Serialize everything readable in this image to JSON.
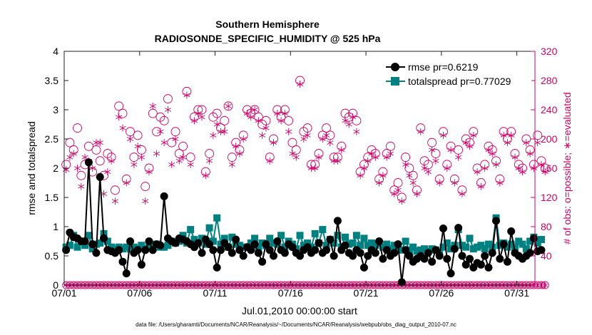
{
  "chart_data": {
    "type": "line",
    "title": "Southern Hemisphere",
    "subtitle": "RADIOSONDE_SPECIFIC_HUMIDITY @ 525 hPa",
    "xlabel": "Jul.01,2010 00:00:00 start",
    "ylabel_left": "rmse and totalspread",
    "ylabel_right": "# of obs: o=possible; ∗=evaluated",
    "footer": "data file: /Users/gharamti/Documents/NCAR/Reanalysis/~/Documents/NCAR/Reanalysis/webpub/obs_diag_output_2010-07.nc",
    "x_ticks": [
      {
        "day": 1,
        "label": "07/01"
      },
      {
        "day": 6,
        "label": "07/06"
      },
      {
        "day": 11,
        "label": "07/11"
      },
      {
        "day": 16,
        "label": "07/16"
      },
      {
        "day": 21,
        "label": "07/21"
      },
      {
        "day": 26,
        "label": "07/26"
      },
      {
        "day": 31,
        "label": "07/31"
      }
    ],
    "xlim": [
      1,
      32.2
    ],
    "y_left": {
      "lim": [
        0,
        4
      ],
      "ticks": [
        "0",
        "0.5",
        "1",
        "1.5",
        "2",
        "2.5",
        "3",
        "3.5",
        "4"
      ]
    },
    "y_right": {
      "lim": [
        0,
        320
      ],
      "ticks": [
        "0",
        "40",
        "80",
        "120",
        "160",
        "200",
        "240",
        "280",
        "320"
      ]
    },
    "colors": {
      "rmse": "#000000",
      "spread": "#008080",
      "obs": "#cc0066"
    },
    "start_day": 1.125,
    "step_days": 0.25,
    "series": [
      {
        "name": "rmse",
        "legend": "rmse pr=0.6219",
        "values": [
          0.6,
          0.9,
          0.82,
          0.8,
          0.75,
          0.75,
          2.1,
          0.7,
          0.55,
          1.85,
          0.8,
          0.6,
          0.58,
          0.55,
          0.6,
          0.4,
          0.2,
          0.75,
          0.55,
          0.6,
          0.35,
          0.6,
          0.75,
          0.6,
          0.7,
          0.68,
          1.52,
          0.8,
          0.75,
          0.72,
          0.8,
          0.78,
          0.75,
          0.7,
          0.65,
          0.72,
          0.55,
          0.78,
          0.7,
          0.6,
          0.3,
          0.6,
          0.72,
          0.65,
          0.55,
          0.78,
          0.6,
          0.5,
          0.65,
          0.6,
          0.7,
          0.55,
          0.4,
          0.7,
          0.6,
          0.5,
          0.75,
          0.6,
          0.55,
          0.7,
          0.65,
          0.55,
          0.5,
          0.6,
          0.65,
          0.55,
          0.6,
          0.72,
          0.55,
          0.6,
          0.78,
          0.5,
          1.1,
          0.6,
          0.68,
          0.55,
          0.5,
          0.6,
          0.55,
          0.3,
          0.5,
          0.6,
          0.55,
          0.75,
          0.45,
          0.6,
          0.5,
          0.55,
          0.7,
          0.05,
          0.6,
          0.5,
          0.4,
          0.45,
          0.5,
          0.45,
          0.55,
          0.4,
          0.6,
          0.5,
          0.97,
          0.45,
          0.2,
          0.62,
          0.98,
          0.5,
          0.35,
          0.45,
          0.3,
          0.38,
          0.35,
          0.5,
          0.3,
          0.55,
          1.1,
          0.45,
          0.7,
          0.4,
          0.92,
          0.55,
          0.5,
          0.45,
          0.5,
          0.55,
          0.8,
          0.58,
          0.6
        ]
      },
      {
        "name": "totalspread",
        "legend": "totalspread pr=0.77029",
        "values": [
          0.65,
          0.68,
          0.85,
          0.65,
          0.75,
          0.68,
          0.85,
          0.62,
          0.7,
          0.72,
          0.88,
          0.75,
          0.65,
          0.62,
          0.65,
          0.62,
          0.65,
          0.62,
          0.65,
          0.62,
          0.68,
          0.62,
          0.65,
          0.68,
          0.7,
          0.65,
          0.65,
          0.68,
          0.75,
          0.72,
          0.75,
          0.85,
          0.72,
          0.95,
          0.78,
          0.72,
          0.8,
          0.7,
          0.98,
          0.75,
          1.15,
          0.7,
          0.8,
          0.65,
          0.82,
          0.7,
          0.68,
          0.65,
          0.65,
          0.72,
          0.8,
          0.65,
          0.72,
          0.68,
          0.8,
          0.72,
          0.7,
          0.85,
          0.65,
          0.75,
          0.7,
          0.62,
          0.85,
          0.68,
          0.72,
          0.65,
          0.88,
          0.72,
          0.95,
          0.68,
          0.78,
          0.72,
          0.85,
          0.65,
          0.82,
          0.7,
          0.72,
          0.85,
          0.68,
          0.8,
          0.68,
          0.72,
          0.68,
          0.72,
          0.65,
          0.7,
          0.62,
          0.68,
          0.62,
          0.6,
          0.75,
          0.6,
          0.65,
          0.58,
          0.6,
          0.62,
          0.58,
          0.62,
          0.6,
          0.55,
          0.65,
          0.72,
          0.62,
          0.68,
          0.95,
          0.68,
          0.65,
          0.8,
          0.62,
          0.65,
          0.68,
          0.62,
          0.7,
          0.65,
          1.15,
          0.68,
          0.72,
          0.65,
          0.7,
          0.65,
          0.75,
          0.7,
          0.62,
          0.75,
          0.82,
          0.72,
          0.78
        ]
      },
      {
        "name": "obs_possible",
        "axis": "right",
        "values": [
          165,
          195,
          185,
          215,
          150,
          165,
          190,
          155,
          185,
          170,
          150,
          180,
          175,
          130,
          245,
          235,
          145,
          210,
          175,
          205,
          185,
          135,
          160,
          235,
          210,
          230,
          225,
          255,
          195,
          210,
          180,
          190,
          265,
          175,
          230,
          240,
          240,
          155,
          180,
          230,
          235,
          215,
          225,
          245,
          175,
          195,
          185,
          205,
          240,
          235,
          240,
          230,
          220,
          225,
          175,
          200,
          240,
          230,
          240,
          225,
          195,
          185,
          280,
          210,
          215,
          165,
          165,
          180,
          205,
          215,
          205,
          175,
          175,
          190,
          235,
          230,
          235,
          225,
          155,
          165,
          175,
          185,
          180,
          145,
          155,
          180,
          190,
          130,
          140,
          120,
          175,
          160,
          150,
          130,
          215,
          170,
          165,
          195,
          180,
          145,
          210,
          165,
          190,
          145,
          185,
          130,
          200,
          195,
          210,
          160,
          140,
          165,
          190,
          185,
          170,
          145,
          210,
          200,
          210,
          180,
          165,
          160,
          200,
          185,
          165,
          205,
          170,
          160
        ]
      },
      {
        "name": "obs_evaluated",
        "axis": "right",
        "values": [
          158,
          175,
          180,
          160,
          135,
          175,
          170,
          160,
          195,
          195,
          125,
          155,
          170,
          115,
          230,
          215,
          140,
          200,
          165,
          190,
          175,
          115,
          155,
          245,
          180,
          210,
          195,
          240,
          165,
          200,
          170,
          175,
          260,
          165,
          225,
          235,
          230,
          150,
          170,
          205,
          220,
          210,
          210,
          245,
          165,
          190,
          180,
          200,
          235,
          230,
          240,
          225,
          205,
          215,
          170,
          195,
          235,
          225,
          235,
          210,
          180,
          175,
          275,
          200,
          205,
          160,
          160,
          175,
          200,
          205,
          195,
          170,
          170,
          185,
          225,
          220,
          230,
          210,
          150,
          160,
          170,
          180,
          175,
          140,
          150,
          175,
          180,
          125,
          130,
          115,
          165,
          150,
          140,
          125,
          210,
          160,
          155,
          185,
          170,
          140,
          205,
          160,
          185,
          140,
          175,
          125,
          195,
          190,
          205,
          155,
          135,
          160,
          185,
          180,
          165,
          140,
          205,
          195,
          205,
          175,
          160,
          155,
          195,
          180,
          160,
          195,
          165,
          155
        ]
      }
    ]
  }
}
